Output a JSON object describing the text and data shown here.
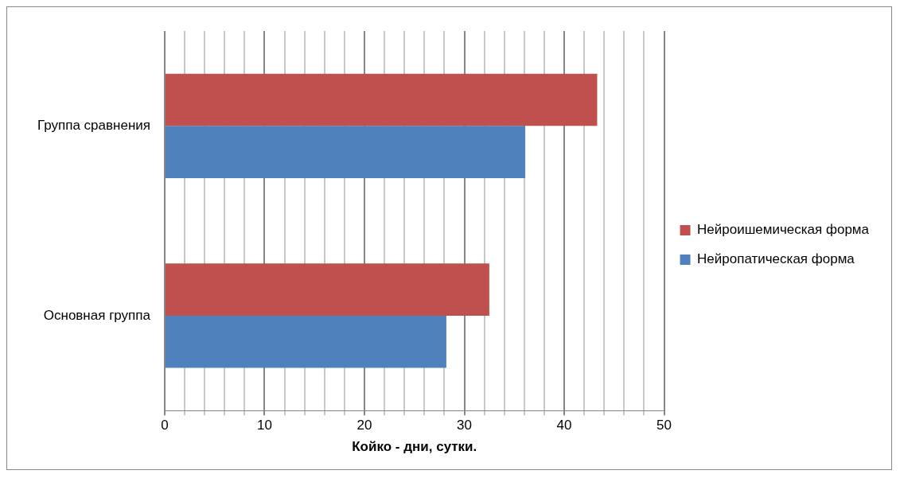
{
  "chart_data": {
    "type": "bar",
    "orientation": "horizontal",
    "xlabel": "Койко - дни, сутки.",
    "categories": [
      "Группа сравнения",
      "Основная группа"
    ],
    "series": [
      {
        "name": "Нейроишемическая форма",
        "color": "#c0504d",
        "values": [
          43.3,
          32.5
        ]
      },
      {
        "name": "Нейропатическая форма",
        "color": "#4f81bd",
        "values": [
          36.1,
          28.2
        ]
      }
    ],
    "xlim": [
      0,
      50
    ],
    "xticks": [
      0,
      {
        "value": 2,
        "label": null
      },
      {
        "value": 4,
        "label": null
      },
      {
        "value": 6,
        "label": null
      },
      {
        "value": 8,
        "label": null
      },
      10,
      {
        "value": 12,
        "label": null
      },
      {
        "value": 14,
        "label": null
      },
      {
        "value": 16,
        "label": null
      },
      {
        "value": 18,
        "label": null
      },
      20,
      {
        "value": 22,
        "label": null
      },
      {
        "value": 24,
        "label": null
      },
      {
        "value": 26,
        "label": null
      },
      {
        "value": 28,
        "label": null
      },
      30,
      {
        "value": 32,
        "label": null
      },
      {
        "value": 34,
        "label": null
      },
      {
        "value": 36,
        "label": null
      },
      {
        "value": 38,
        "label": null
      },
      40,
      {
        "value": 42,
        "label": null
      },
      {
        "value": 44,
        "label": null
      },
      {
        "value": 46,
        "label": null
      },
      {
        "value": 48,
        "label": null
      },
      50
    ],
    "grid": "x",
    "legend": "right"
  }
}
